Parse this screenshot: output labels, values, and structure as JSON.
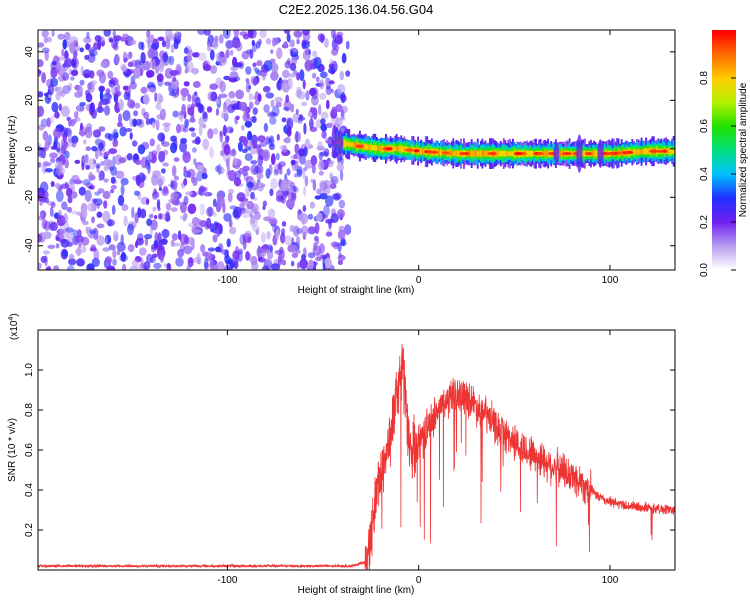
{
  "figure": {
    "title": "C2E2.2025.136.04.56.G04"
  },
  "chart_data": [
    {
      "type": "heatmap",
      "xlabel": "Height of straight line (km)",
      "ylabel": "Frequency (Hz)",
      "xlim": [
        -199,
        134
      ],
      "ylim": [
        -50,
        49
      ],
      "x_ticks": [
        -100,
        0,
        100
      ],
      "x_tick_labels": [
        "-100",
        "0",
        "100"
      ],
      "y_ticks": [
        -40,
        -20,
        0,
        20,
        40
      ],
      "y_tick_labels": [
        "-40",
        "-20",
        "0",
        "20",
        "40"
      ],
      "grid": false,
      "noise_region_x": [
        -199,
        -37
      ],
      "signal_band": {
        "x_start": -44,
        "x_end": 134,
        "center_freq": [
          [
            -44,
            3
          ],
          [
            -38,
            2
          ],
          [
            -30,
            1
          ],
          [
            -20,
            0
          ],
          [
            -10,
            0
          ],
          [
            0,
            -1
          ],
          [
            20,
            -2
          ],
          [
            40,
            -2
          ],
          [
            60,
            -2
          ],
          [
            80,
            -2
          ],
          [
            100,
            -2
          ],
          [
            120,
            -1
          ],
          [
            134,
            -1
          ]
        ],
        "half_width_hz": 3
      },
      "colorbar": {
        "label": "Normalized spectral amplitude",
        "range": [
          0,
          1
        ],
        "ticks": [
          0,
          0.2,
          0.4,
          0.6,
          0.8
        ],
        "tick_labels": [
          "0.0",
          "0.2",
          "0.4",
          "0.6",
          "0.8"
        ],
        "colors": [
          "#ffffff",
          "#b79cf0",
          "#7020f0",
          "#2030ff",
          "#00c0ff",
          "#00e080",
          "#20e000",
          "#b0f000",
          "#ffd000",
          "#ff7000",
          "#ff0000"
        ]
      }
    },
    {
      "type": "line",
      "xlabel": "Height of straight line (km)",
      "ylabel": "SNR (10 * v/v)",
      "scale_label": "(x10",
      "scale_exponent": "4",
      "scale_label_close": ")",
      "xlim": [
        -199,
        134
      ],
      "ylim": [
        0,
        1.2
      ],
      "x_ticks": [
        -100,
        0,
        100
      ],
      "x_tick_labels": [
        "-100",
        "0",
        "100"
      ],
      "y_ticks": [
        0.2,
        0.4,
        0.6,
        0.8,
        1.0
      ],
      "y_tick_labels": [
        "0.2",
        "0.4",
        "0.6",
        "0.8",
        "1.0"
      ],
      "grid": false,
      "series": [
        {
          "color": "#ee3333",
          "x": [
            -199,
            -150,
            -100,
            -60,
            -35,
            -28,
            -25,
            -22,
            -18,
            -15,
            -12,
            -10,
            -8,
            -6,
            -4,
            0,
            5,
            10,
            15,
            20,
            25,
            30,
            35,
            40,
            45,
            50,
            55,
            60,
            65,
            70,
            75,
            80,
            85,
            90,
            95,
            100,
            105,
            110,
            120,
            134
          ],
          "y": [
            0.02,
            0.02,
            0.02,
            0.02,
            0.02,
            0.04,
            0.15,
            0.4,
            0.55,
            0.65,
            0.85,
            0.95,
            1.05,
            0.7,
            0.6,
            0.65,
            0.72,
            0.8,
            0.85,
            0.88,
            0.87,
            0.82,
            0.78,
            0.72,
            0.68,
            0.64,
            0.6,
            0.58,
            0.55,
            0.52,
            0.5,
            0.47,
            0.44,
            0.4,
            0.36,
            0.34,
            0.33,
            0.32,
            0.31,
            0.3
          ]
        }
      ]
    }
  ]
}
